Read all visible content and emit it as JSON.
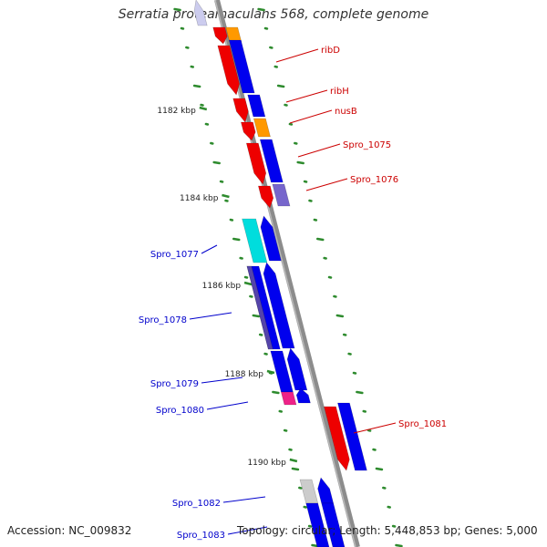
{
  "title": "Serratia proteamaculans 568, complete genome",
  "accession": "Accession: NC_009832",
  "summary": "Topology: circular; Length: 5,448,853 bp; Genes: 5,000",
  "colors": {
    "backbone": "#8c8c8c",
    "tick": "#2e8b2e",
    "forward_label": "#cc0000",
    "reverse_label": "#0000cc",
    "red": "#ee0000",
    "blue": "#0000ee",
    "orange": "#ff9900",
    "cyan": "#00dddd",
    "gray": "#cccccc",
    "purple": "#7766cc",
    "magenta": "#ee2288"
  },
  "kbp_labels": [
    "1182 kbp",
    "1184 kbp",
    "1186 kbp",
    "1188 kbp",
    "1190 kbp"
  ],
  "gene_labels": [
    {
      "text": "ribD",
      "strand": "forward"
    },
    {
      "text": "ribH",
      "strand": "forward"
    },
    {
      "text": "nusB",
      "strand": "forward"
    },
    {
      "text": "Spro_1075",
      "strand": "forward"
    },
    {
      "text": "Spro_1076",
      "strand": "forward"
    },
    {
      "text": "Spro_1077",
      "strand": "reverse"
    },
    {
      "text": "Spro_1078",
      "strand": "reverse"
    },
    {
      "text": "Spro_1079",
      "strand": "reverse"
    },
    {
      "text": "Spro_1080",
      "strand": "reverse"
    },
    {
      "text": "Spro_1081",
      "strand": "forward"
    },
    {
      "text": "Spro_1082",
      "strand": "reverse"
    },
    {
      "text": "Spro_1083",
      "strand": "reverse"
    }
  ]
}
